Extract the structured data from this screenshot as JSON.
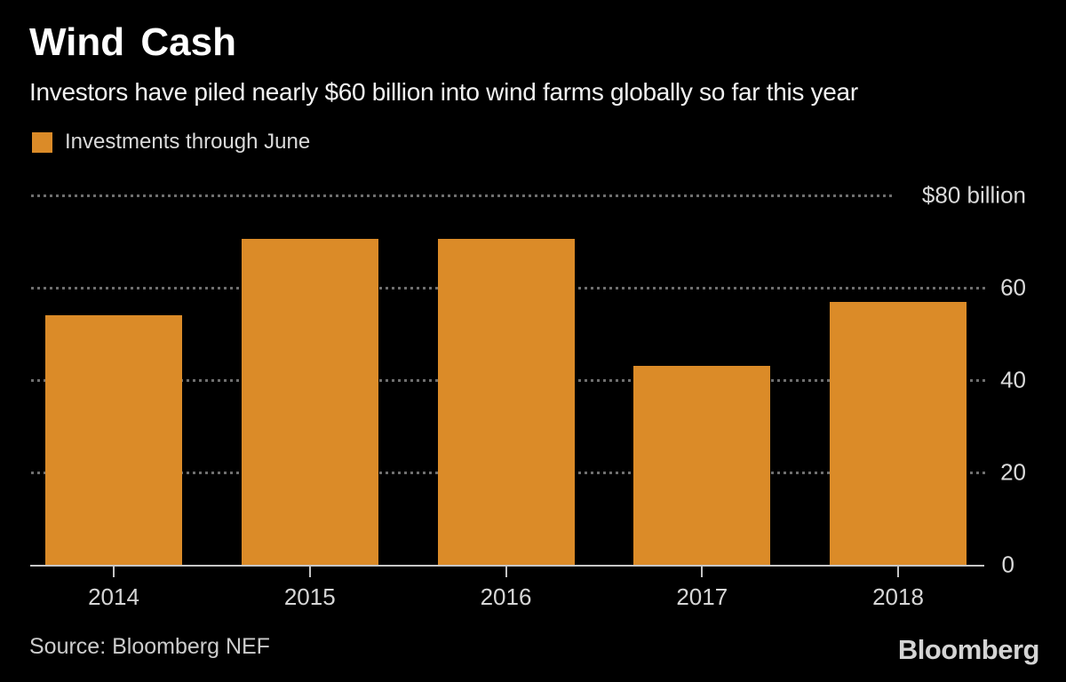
{
  "header": {
    "title": "Wind Cash",
    "subtitle": "Investors have piled nearly $60 billion into wind farms globally so far this year"
  },
  "legend": {
    "items": [
      {
        "label": "Investments through June",
        "color": "#DB8B28"
      }
    ]
  },
  "chart_data": {
    "type": "bar",
    "title": "Wind Cash",
    "subtitle": "Investors have piled nearly $60 billion into wind farms globally so far this year",
    "categories": [
      "2014",
      "2015",
      "2016",
      "2017",
      "2018"
    ],
    "series": [
      {
        "name": "Investments through June",
        "values": [
          54,
          70.5,
          70.5,
          43,
          57
        ]
      }
    ],
    "unit": "$ billion",
    "ylim": [
      0,
      80
    ],
    "yticks": [
      {
        "value": 80,
        "label": "$80 billion"
      },
      {
        "value": 60,
        "label": "60"
      },
      {
        "value": 40,
        "label": "40"
      },
      {
        "value": 20,
        "label": "20"
      },
      {
        "value": 0,
        "label": "0"
      }
    ],
    "grid": "horizontal-dotted",
    "legend_position": "top-left",
    "value_axis_side": "right",
    "bar_color": "#DB8B28",
    "background_color": "#000000"
  },
  "footer": {
    "source": "Source: Bloomberg NEF",
    "logo": "Bloomberg"
  },
  "colors": {
    "background": "#000000",
    "bar": "#DB8B28",
    "title": "#ffffff",
    "subtitle": "#f1f1f1",
    "gridline": "#6f6f6f",
    "axis": "#c6c6c6",
    "labels": "#dadada"
  }
}
